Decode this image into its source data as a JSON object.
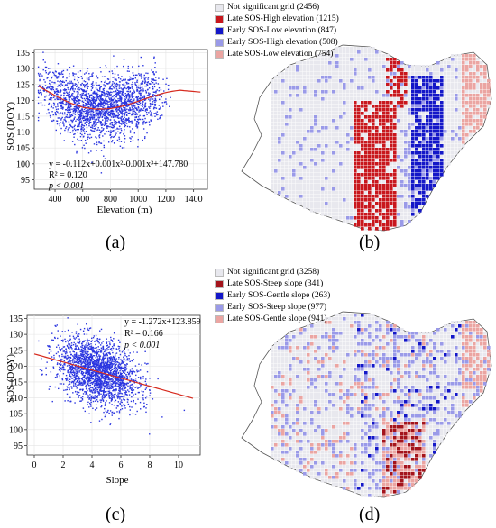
{
  "panels": {
    "a": {
      "label": "(a)"
    },
    "b": {
      "label": "(b)"
    },
    "c": {
      "label": "(c)"
    },
    "d": {
      "label": "(d)"
    }
  },
  "map_b": {
    "legend": [
      {
        "label": "Not significant grid (2456)",
        "color": "#e8e8ee"
      },
      {
        "label": "Late SOS-High elevation (1215)",
        "color": "#c8171d"
      },
      {
        "label": "Early SOS-Low elevation (847)",
        "color": "#1417c8"
      },
      {
        "label": "Early SOS-High elevation (508)",
        "color": "#9a9ae8"
      },
      {
        "label": "Late SOS-Low elevation (754)",
        "color": "#eba5a2"
      }
    ]
  },
  "map_d": {
    "legend": [
      {
        "label": "Not significant grid (3258)",
        "color": "#e8e8ee"
      },
      {
        "label": "Late SOS-Steep slope (341)",
        "color": "#a4141c"
      },
      {
        "label": "Early SOS-Gentle slope (263)",
        "color": "#1417c8"
      },
      {
        "label": "Early SOS-Steep slope (977)",
        "color": "#9a9ae8"
      },
      {
        "label": "Late SOS-Gentle slope (941)",
        "color": "#eba5a2"
      }
    ]
  },
  "chart_data": [
    {
      "type": "scatter",
      "panel": "a",
      "xlabel": "Elevation (m)",
      "ylabel": "SOS (DOY)",
      "xlim": [
        250,
        1500
      ],
      "ylim": [
        92,
        136
      ],
      "xticks": [
        400,
        600,
        800,
        1000,
        1200,
        1400
      ],
      "yticks": [
        95,
        100,
        105,
        110,
        115,
        120,
        125,
        130,
        135
      ],
      "point_color": "#2a35e0",
      "fit_color": "#d62a1e",
      "fit": {
        "type": "cubic",
        "coefficients": [
          147.78,
          -0.112,
          0.001,
          -0.001
        ]
      },
      "fit_curve": {
        "x": [
          280,
          400,
          500,
          600,
          700,
          800,
          900,
          1000,
          1100,
          1200,
          1300,
          1450
        ],
        "y": [
          124.5,
          121.5,
          119.3,
          117.8,
          117.2,
          117.4,
          118.3,
          119.7,
          121.2,
          122.5,
          123.2,
          122.6
        ]
      },
      "annotations": {
        "equation": "y = -0.112x+0.001x²-0.001x³+147.780",
        "r2": "R² = 0.120",
        "p": "p < 0.001"
      },
      "cloud": {
        "x_range": [
          280,
          1450
        ],
        "y_center": 118,
        "y_spread": 5
      }
    },
    {
      "type": "scatter",
      "panel": "c",
      "xlabel": "Slope",
      "ylabel": "SOS (DOY)",
      "xlim": [
        -0.5,
        11.5
      ],
      "ylim": [
        92,
        136
      ],
      "xticks": [
        0,
        2,
        4,
        6,
        8,
        10
      ],
      "yticks": [
        95,
        100,
        105,
        110,
        115,
        120,
        125,
        130,
        135
      ],
      "point_color": "#2a35e0",
      "fit_color": "#d62a1e",
      "fit": {
        "type": "linear",
        "slope": -1.272,
        "intercept": 123.859
      },
      "fit_curve": {
        "x": [
          0,
          11
        ],
        "y": [
          123.859,
          109.867
        ]
      },
      "annotations": {
        "equation": "y = -1.272x+123.859",
        "r2": "R² = 0.166",
        "p": "p < 0.001"
      },
      "cloud": {
        "x_range": [
          0.3,
          10.8
        ],
        "y_center": 120,
        "y_spread": 5
      }
    }
  ]
}
